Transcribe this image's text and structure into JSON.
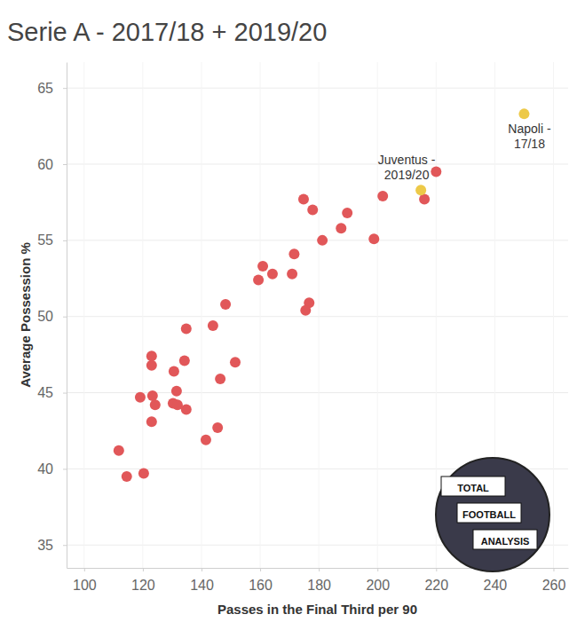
{
  "chart_data": {
    "type": "scatter",
    "title": "Serie A - 2017/18 + 2019/20",
    "x_label": "Passes in the Final Third per 90",
    "y_label": "Average Possession %",
    "xlim": [
      94,
      265
    ],
    "ylim": [
      33.5,
      66.7
    ],
    "xticks": [
      100,
      120,
      140,
      160,
      180,
      200,
      220,
      240,
      260
    ],
    "yticks": [
      35,
      40,
      45,
      50,
      55,
      60,
      65
    ],
    "grid": true,
    "watermark": [
      "TOTAL",
      "FOOTBALL",
      "ANALYSIS"
    ],
    "series": [
      {
        "color": "#e15759",
        "marker": "circle",
        "x": [
          220,
          201.8,
          216,
          174.8,
          177.9,
          189.7,
          187.6,
          198.8,
          181.2,
          171.6,
          160.9,
          164.2,
          170.9,
          159.4,
          176.7,
          148.2,
          175.5,
          134.8,
          143.9,
          123,
          134.2,
          151.5,
          123,
          130.6,
          146.4,
          131.5,
          119.1,
          123.3,
          124.2,
          130.3,
          131.8,
          134.8,
          123,
          145.5,
          141.5,
          111.8,
          114.5,
          120.3
        ],
        "values": [
          59.5,
          57.9,
          57.7,
          57.7,
          57,
          56.8,
          55.8,
          55.1,
          55,
          54.1,
          53.3,
          52.8,
          52.8,
          52.4,
          50.9,
          50.8,
          50.4,
          49.2,
          49.4,
          47.4,
          47.1,
          47,
          46.8,
          46.4,
          45.9,
          45.1,
          44.7,
          44.8,
          44.2,
          44.3,
          44.2,
          43.9,
          43.1,
          42.7,
          41.9,
          41.2,
          39.5,
          39.7
        ]
      },
      {
        "color": "#edc948",
        "marker": "circle",
        "x": [
          214.8,
          250
        ],
        "values": [
          58.3,
          63.3
        ],
        "labels": [
          [
            "Juventus -",
            "2019/20"
          ],
          [
            "Napoli -",
            "17/18"
          ]
        ]
      }
    ]
  }
}
